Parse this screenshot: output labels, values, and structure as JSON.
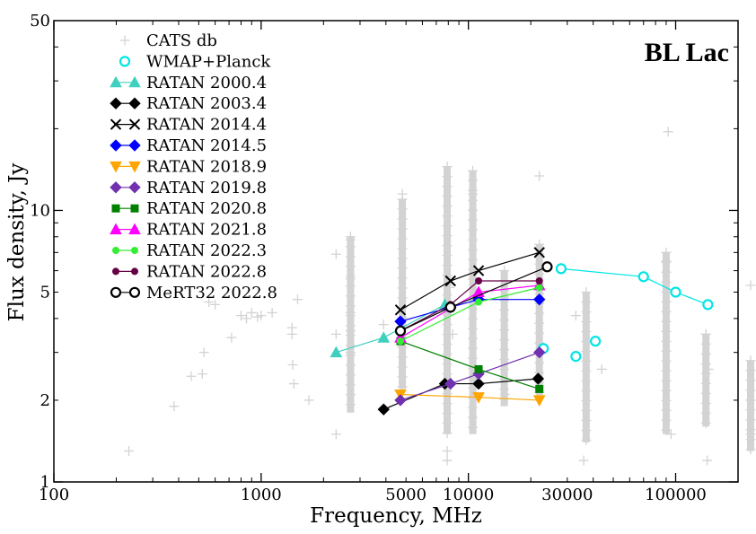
{
  "chart_data": {
    "type": "scatter",
    "title": "",
    "annotation": {
      "text": "BL Lac",
      "color": "#ff0000"
    },
    "xlabel": "Frequency, MHz",
    "ylabel": "Flux density, Jy",
    "x_scale": "log",
    "y_scale": "log",
    "xlim": [
      100,
      200000
    ],
    "ylim": [
      1,
      50
    ],
    "x_ticks": [
      {
        "value": 100,
        "label": "100"
      },
      {
        "value": 1000,
        "label": "1000"
      },
      {
        "value": 5000,
        "label": "5000"
      },
      {
        "value": 10000,
        "label": "10000"
      },
      {
        "value": 30000,
        "label": "30000"
      },
      {
        "value": 100000,
        "label": "100000"
      }
    ],
    "y_ticks": [
      {
        "value": 1,
        "label": "1"
      },
      {
        "value": 2,
        "label": "2"
      },
      {
        "value": 5,
        "label": "5"
      },
      {
        "value": 10,
        "label": "10"
      },
      {
        "value": 50,
        "label": "50"
      }
    ],
    "grid": false,
    "legend_position": "top-left",
    "series": [
      {
        "name": "CATS db",
        "color": "#d3d3d3",
        "marker": "plus",
        "line": false,
        "points": [
          [
            230,
            1.3
          ],
          [
            380,
            1.9
          ],
          [
            460,
            2.45
          ],
          [
            520,
            2.5
          ],
          [
            530,
            3.0
          ],
          [
            560,
            4.6
          ],
          [
            600,
            4.5
          ],
          [
            720,
            3.4
          ],
          [
            800,
            4.1
          ],
          [
            850,
            4.0
          ],
          [
            900,
            4.2
          ],
          [
            960,
            4.05
          ],
          [
            1000,
            4.1
          ],
          [
            1130,
            4.2
          ],
          [
            1410,
            3.7
          ],
          [
            1410,
            3.5
          ],
          [
            1420,
            2.7
          ],
          [
            1440,
            2.3
          ],
          [
            1500,
            4.7
          ],
          [
            1700,
            2.0
          ],
          [
            2300,
            3.5
          ],
          [
            2300,
            6.9
          ],
          [
            2300,
            1.5
          ],
          [
            2700,
            7.8
          ],
          [
            2700,
            5.6
          ],
          [
            2700,
            4.2
          ],
          [
            2700,
            3.6
          ],
          [
            2700,
            3.0
          ],
          [
            3900,
            3.8
          ],
          [
            4800,
            11.5
          ],
          [
            4900,
            3.5
          ],
          [
            7900,
            1.3
          ],
          [
            7900,
            1.2
          ],
          [
            8100,
            5.2
          ],
          [
            8400,
            3.5
          ],
          [
            10500,
            11.5
          ],
          [
            14900,
            4.8
          ],
          [
            15000,
            2.1
          ],
          [
            22000,
            13.4
          ],
          [
            33000,
            4.1
          ],
          [
            36000,
            1.2
          ],
          [
            44000,
            2.6
          ],
          [
            90000,
            6.5
          ],
          [
            92000,
            19.5
          ],
          [
            95000,
            1.5
          ],
          [
            140000,
            3.5
          ],
          [
            142000,
            1.2
          ],
          [
            144000,
            2.6
          ],
          [
            230000,
            5.3
          ],
          [
            230000,
            2.0
          ],
          [
            230000,
            1.5
          ]
        ],
        "bands": [
          [
            2700,
            1.8,
            8.0
          ],
          [
            4800,
            2.2,
            11.0
          ],
          [
            7900,
            1.5,
            14.5
          ],
          [
            10500,
            1.5,
            14.0
          ],
          [
            14900,
            1.9,
            6.0
          ],
          [
            22000,
            2.0,
            7.5
          ],
          [
            37000,
            1.4,
            5.0
          ],
          [
            90000,
            1.5,
            7.0
          ],
          [
            140000,
            1.6,
            3.5
          ],
          [
            230000,
            1.3,
            2.8
          ]
        ]
      },
      {
        "name": "WMAP+Planck",
        "color": "#00e5e5",
        "marker": "circle-open",
        "line": false,
        "points": [
          [
            23000,
            3.1
          ],
          [
            33000,
            2.9
          ],
          [
            41000,
            3.3
          ]
        ]
      },
      {
        "name": "RATAN 2000.4",
        "color": "#40d0c0",
        "marker": "triangle-up",
        "line": true,
        "points": [
          [
            2300,
            3.0
          ],
          [
            3900,
            3.4
          ],
          [
            7700,
            4.5
          ]
        ]
      },
      {
        "name": "RATAN 2003.4",
        "color": "#000000",
        "marker": "diamond",
        "line": true,
        "points": [
          [
            3900,
            1.85
          ],
          [
            7700,
            2.3
          ],
          [
            11200,
            2.3
          ],
          [
            21700,
            2.4
          ]
        ]
      },
      {
        "name": "RATAN 2014.4",
        "color": "#000000",
        "marker": "x",
        "line": true,
        "points": [
          [
            4700,
            4.3
          ],
          [
            8200,
            5.5
          ],
          [
            11200,
            6.0
          ],
          [
            22000,
            7.0
          ]
        ]
      },
      {
        "name": "RATAN 2014.5",
        "color": "#0000ff",
        "marker": "diamond",
        "line": true,
        "points": [
          [
            4700,
            3.9
          ],
          [
            8200,
            4.4
          ],
          [
            11200,
            4.7
          ],
          [
            22000,
            4.7
          ]
        ]
      },
      {
        "name": "RATAN 2018.9",
        "color": "#ffa500",
        "marker": "triangle-down",
        "line": true,
        "points": [
          [
            4700,
            2.1
          ],
          [
            11200,
            2.05
          ],
          [
            22000,
            2.0
          ]
        ]
      },
      {
        "name": "RATAN 2019.8",
        "color": "#7030b0",
        "marker": "diamond",
        "line": true,
        "points": [
          [
            4700,
            2.0
          ],
          [
            8200,
            2.3
          ],
          [
            11200,
            2.5
          ],
          [
            22000,
            3.0
          ]
        ]
      },
      {
        "name": "RATAN 2020.8",
        "color": "#008000",
        "marker": "square",
        "line": true,
        "points": [
          [
            4700,
            3.3
          ],
          [
            11200,
            2.6
          ],
          [
            22000,
            2.2
          ]
        ]
      },
      {
        "name": "RATAN 2021.8",
        "color": "#ff00ff",
        "marker": "triangle-up",
        "line": true,
        "points": [
          [
            4700,
            3.4
          ],
          [
            11200,
            5.0
          ],
          [
            22000,
            5.3
          ]
        ]
      },
      {
        "name": "RATAN 2022.3",
        "color": "#33ee33",
        "marker": "dot",
        "line": true,
        "points": [
          [
            4700,
            3.3
          ],
          [
            11200,
            4.6
          ],
          [
            22000,
            5.2
          ]
        ]
      },
      {
        "name": "RATAN 2022.8",
        "color": "#660044",
        "marker": "dot",
        "line": true,
        "points": [
          [
            4700,
            3.6
          ],
          [
            8200,
            4.5
          ],
          [
            11200,
            5.5
          ],
          [
            22000,
            5.5
          ]
        ]
      },
      {
        "name": "MeRT32 2022.8",
        "color": "#000000",
        "marker": "circle-open",
        "line": true,
        "points": [
          [
            4700,
            3.6
          ],
          [
            8200,
            4.4
          ],
          [
            24000,
            6.2
          ]
        ]
      },
      {
        "name": "",
        "color": "#00e5e5",
        "marker": "circle-open",
        "line": true,
        "points": [
          [
            28000,
            6.1
          ],
          [
            70000,
            5.7
          ],
          [
            100000,
            5.0
          ],
          [
            143000,
            4.5
          ]
        ]
      }
    ]
  }
}
